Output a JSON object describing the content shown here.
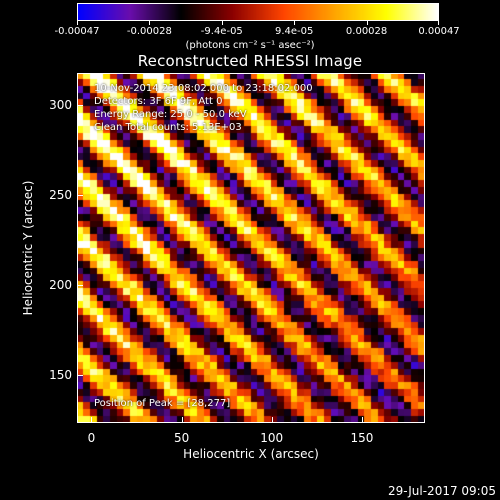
{
  "colorbar": {
    "ticks": [
      "-0.00047",
      "-0.00028",
      "-9.4e-05",
      "9.4e-05",
      "0.00028",
      "0.00047"
    ],
    "units": "(photons cm⁻² s⁻¹ asec⁻²)"
  },
  "annotations": {
    "line1": "10-Nov-2014 23:08:02.000 to 23:18:02.000",
    "line2": "Detectors: 3F 6F 9F, Att 0",
    "line3": "Energy Range: 25.0 - 50.0 keV",
    "line4": "Clean    Total counts: 5.13E+03",
    "peak": "Position of Peak = [28,277]"
  },
  "footer": {
    "date": "29-Jul-2017 09:05"
  },
  "chart_data": {
    "type": "heatmap",
    "title": "Reconstructed RHESSI Image",
    "xlabel": "Heliocentric X (arcsec)",
    "ylabel": "Heliocentric Y (arcsec)",
    "xlim": [
      -8,
      185
    ],
    "ylim": [
      123,
      318
    ],
    "xticks": [
      "0",
      "50",
      "100",
      "150"
    ],
    "yticks": [
      "150",
      "200",
      "250",
      "300"
    ],
    "zlim": [
      -0.00047,
      0.00047
    ],
    "colormap": [
      "#0000ff",
      "#6a0dad",
      "#000000",
      "#8b0000",
      "#ff4500",
      "#ffa500",
      "#ffff00",
      "#ffffff"
    ],
    "peak": {
      "x": 28,
      "y": 277
    },
    "grid_cells": 52,
    "stripe_angle_deg": 45
  }
}
